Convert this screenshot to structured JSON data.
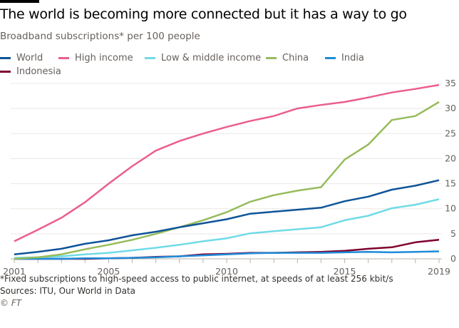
{
  "header": {
    "title": "The world is becoming more connected but it has a way to go",
    "subtitle": "Broadband subscriptions* per 100 people"
  },
  "footer": {
    "note": "*Fixed subscriptions to high-speed access to public internet, at speeds of at least 256 kbit/s",
    "sources": "Sources: ITU, Our World in Data",
    "credit": "© FT"
  },
  "chart_data": {
    "type": "line",
    "title": "The world is becoming more connected but it has a way to go",
    "subtitle": "Broadband subscriptions* per 100 people",
    "x": [
      2001,
      2002,
      2003,
      2004,
      2005,
      2006,
      2007,
      2008,
      2009,
      2010,
      2011,
      2012,
      2013,
      2014,
      2015,
      2016,
      2017,
      2018,
      2019
    ],
    "x_tick_labels": [
      "2001",
      "2005",
      "2010",
      "2015",
      "2019"
    ],
    "y_tick_labels": [
      "0",
      "5",
      "10",
      "15",
      "20",
      "25",
      "30",
      "35"
    ],
    "ylim": [
      0,
      35
    ],
    "xlim": [
      2001,
      2019
    ],
    "y_axis_side": "right",
    "grid": true,
    "legend_placement": "top",
    "series": [
      {
        "name": "World",
        "color": "#0f5499",
        "values": [
          0.9,
          1.4,
          2.0,
          3.0,
          3.7,
          4.7,
          5.4,
          6.3,
          7.1,
          7.9,
          9.0,
          9.4,
          9.8,
          10.2,
          11.5,
          12.4,
          13.8,
          14.6,
          15.7
        ]
      },
      {
        "name": "High income",
        "color": "#eb5e8d",
        "values": [
          3.5,
          5.8,
          8.2,
          11.3,
          15.0,
          18.5,
          21.6,
          23.5,
          25.0,
          26.3,
          27.5,
          28.5,
          30.0,
          30.7,
          31.3,
          32.2,
          33.2,
          33.9,
          34.7
        ]
      },
      {
        "name": "Low & middle income",
        "color": "#70dbe6",
        "values": [
          0.2,
          0.3,
          0.5,
          0.9,
          1.2,
          1.7,
          2.2,
          2.8,
          3.5,
          4.1,
          5.1,
          5.5,
          5.9,
          6.3,
          7.7,
          8.6,
          10.1,
          10.8,
          11.9
        ]
      },
      {
        "name": "China",
        "color": "#96bc5b",
        "values": [
          0.0,
          0.3,
          0.9,
          1.9,
          2.8,
          3.8,
          5.0,
          6.3,
          7.7,
          9.3,
          11.4,
          12.7,
          13.6,
          14.3,
          19.8,
          22.8,
          27.7,
          28.5,
          31.3
        ]
      },
      {
        "name": "India",
        "color": "#1f8bd8",
        "values": [
          0.0,
          0.0,
          0.0,
          0.1,
          0.1,
          0.2,
          0.3,
          0.5,
          0.7,
          0.9,
          1.1,
          1.2,
          1.2,
          1.2,
          1.3,
          1.4,
          1.3,
          1.4,
          1.5
        ]
      },
      {
        "name": "Indonesia",
        "color": "#7d0030",
        "values": [
          0.0,
          0.0,
          0.0,
          0.0,
          0.1,
          0.2,
          0.4,
          0.5,
          0.9,
          1.0,
          1.2,
          1.2,
          1.3,
          1.4,
          1.6,
          2.0,
          2.3,
          3.3,
          3.8
        ]
      }
    ]
  }
}
